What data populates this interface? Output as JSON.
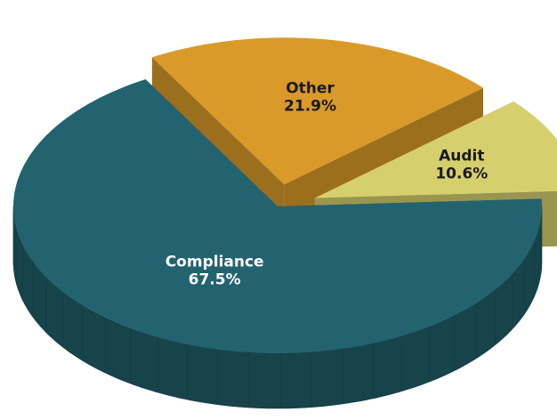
{
  "chart_data": {
    "type": "pie",
    "categories": [
      "Compliance",
      "Other",
      "Audit"
    ],
    "values": [
      67.5,
      21.9,
      10.6
    ],
    "value_labels": [
      "67.5%",
      "21.9%",
      "10.6%"
    ],
    "colors": [
      "#22636f",
      "#d99a2a",
      "#d6cf6e"
    ],
    "exploded": [
      false,
      true,
      true
    ]
  }
}
